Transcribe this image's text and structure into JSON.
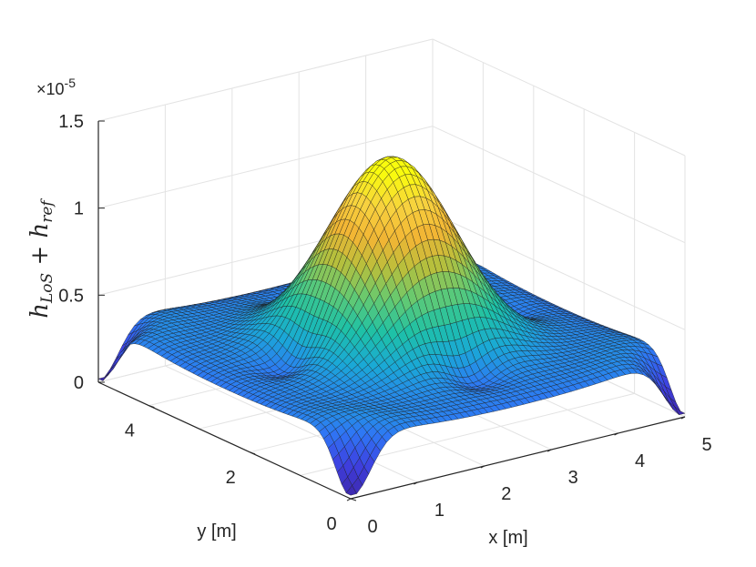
{
  "chart_data": {
    "type": "surface",
    "title": "",
    "xlabel": "x [m]",
    "ylabel": "y [m]",
    "zlabel_main_1": "h",
    "zlabel_sub_1": "LoS",
    "zlabel_plus": " + ",
    "zlabel_main_2": "h",
    "zlabel_sub_2": "ref",
    "z_multiplier": "×10",
    "z_exponent": "-5",
    "xlim": [
      0,
      5
    ],
    "ylim": [
      0,
      5
    ],
    "zlim": [
      0,
      1.5
    ],
    "x_ticks": [
      "0",
      "1",
      "2",
      "3",
      "4",
      "5"
    ],
    "y_ticks": [
      "0",
      "2",
      "4"
    ],
    "z_ticks": [
      "0",
      "0.5",
      "1",
      "1.5"
    ],
    "z_tick_values": [
      0,
      0.5,
      1,
      1.5
    ],
    "grid": true,
    "colormap": "parula",
    "colors": [
      "#3e26a8",
      "#3e3fe0",
      "#2f76f5",
      "#1aa8d7",
      "#1ec1a6",
      "#62ca73",
      "#b7bf3c",
      "#f2b534",
      "#f7d23f",
      "#f9fb0e"
    ],
    "surface_samples": {
      "description": "z(x,y) values ×1e-5 at x,y = 0,1.25,2.5,3.75,5",
      "x": [
        0,
        1.25,
        2.5,
        3.75,
        5
      ],
      "y": [
        0,
        1.25,
        2.5,
        3.75,
        5
      ],
      "z": [
        [
          0.05,
          0.4,
          0.4,
          0.4,
          0.05
        ],
        [
          0.4,
          0.48,
          0.52,
          0.48,
          0.4
        ],
        [
          0.4,
          0.52,
          1.2,
          0.52,
          0.4
        ],
        [
          0.4,
          0.48,
          0.52,
          0.48,
          0.4
        ],
        [
          0.05,
          0.4,
          0.4,
          0.4,
          0.05
        ]
      ],
      "peak": 1.33
    }
  }
}
